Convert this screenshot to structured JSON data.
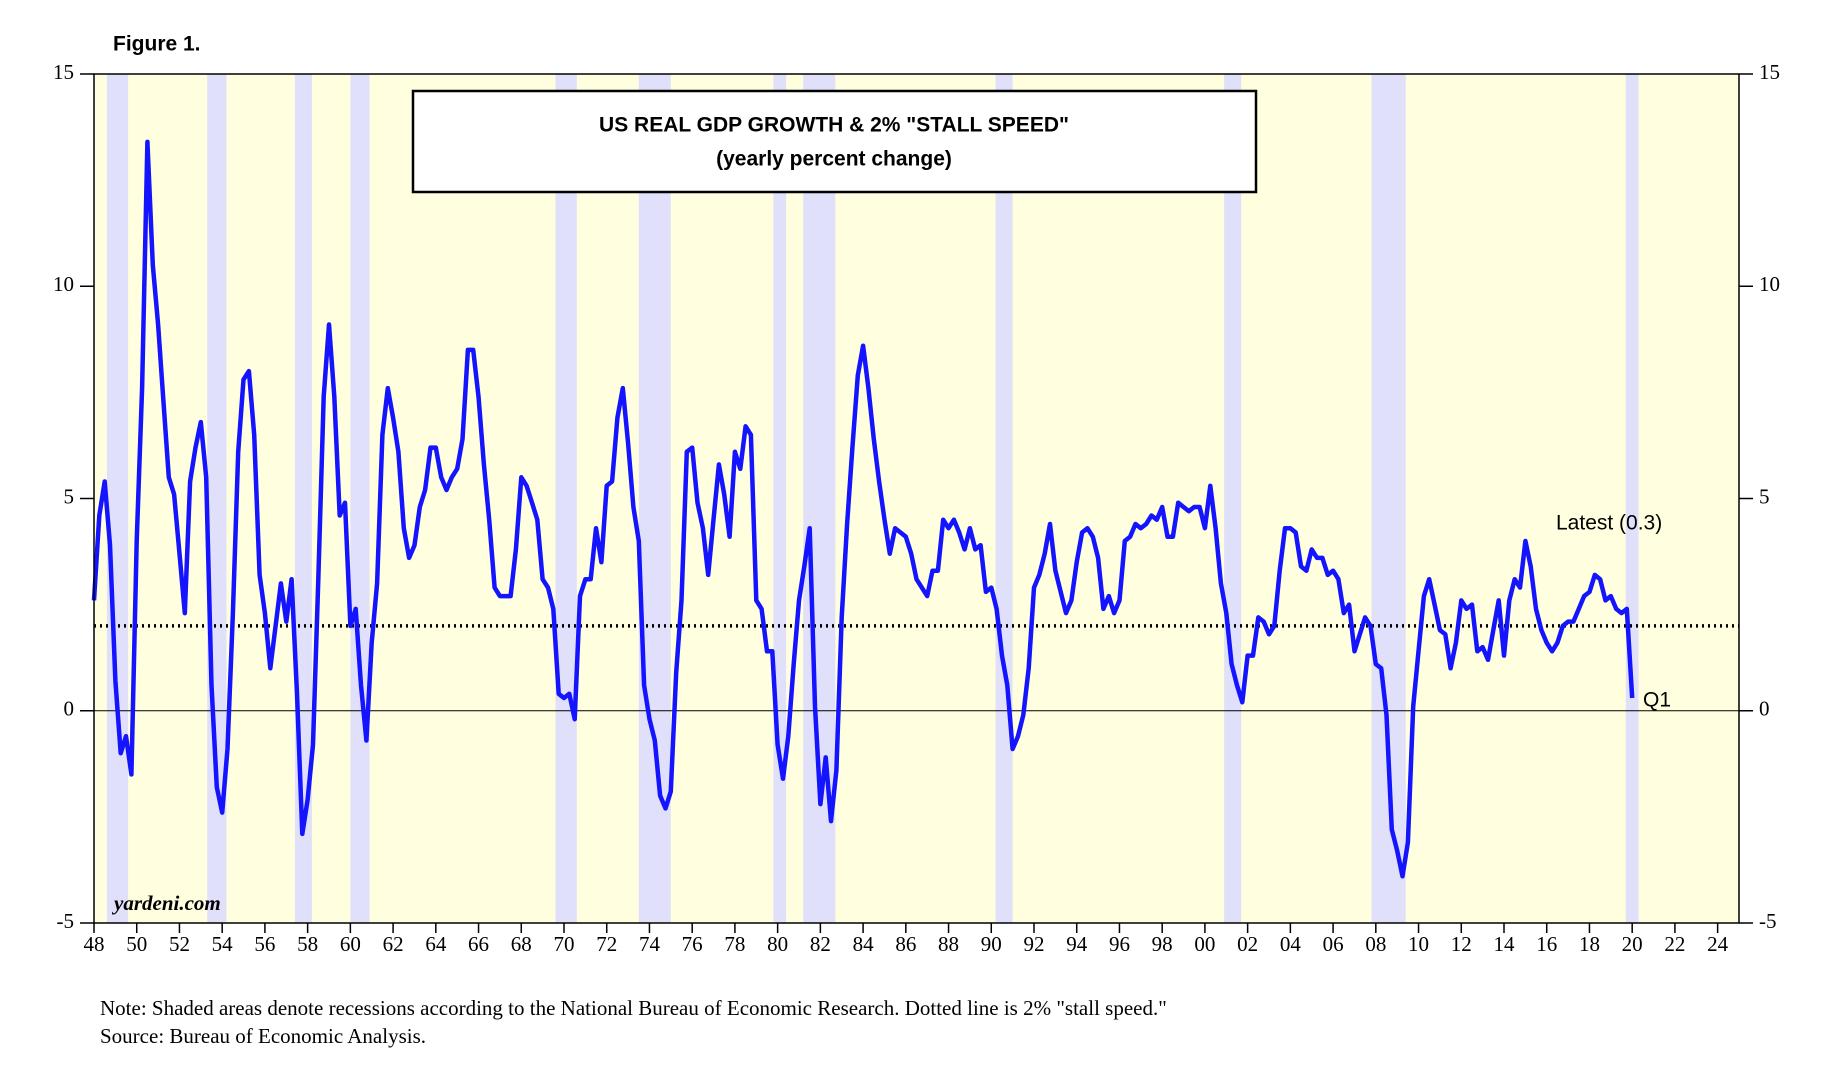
{
  "figure_label": "Figure 1.",
  "chart_data": {
    "type": "line",
    "title": "US REAL GDP GROWTH & 2% \"STALL SPEED\"",
    "subtitle": "(yearly percent change)",
    "color": "#1414ff",
    "x": [
      1948,
      1948.25,
      1948.5,
      1948.75,
      1949,
      1949.25,
      1949.5,
      1949.75,
      1950,
      1950.25,
      1950.5,
      1950.75,
      1951,
      1951.25,
      1951.5,
      1951.75,
      1952,
      1952.25,
      1952.5,
      1952.75,
      1953,
      1953.25,
      1953.5,
      1953.75,
      1954,
      1954.25,
      1954.5,
      1954.75,
      1955,
      1955.25,
      1955.5,
      1955.75,
      1956,
      1956.25,
      1956.5,
      1956.75,
      1957,
      1957.25,
      1957.5,
      1957.75,
      1958,
      1958.25,
      1958.5,
      1958.75,
      1959,
      1959.25,
      1959.5,
      1959.75,
      1960,
      1960.25,
      1960.5,
      1960.75,
      1961,
      1961.25,
      1961.5,
      1961.75,
      1962,
      1962.25,
      1962.5,
      1962.75,
      1963,
      1963.25,
      1963.5,
      1963.75,
      1964,
      1964.25,
      1964.5,
      1964.75,
      1965,
      1965.25,
      1965.5,
      1965.75,
      1966,
      1966.25,
      1966.5,
      1966.75,
      1967,
      1967.25,
      1967.5,
      1967.75,
      1968,
      1968.25,
      1968.5,
      1968.75,
      1969,
      1969.25,
      1969.5,
      1969.75,
      1970,
      1970.25,
      1970.5,
      1970.75,
      1971,
      1971.25,
      1971.5,
      1971.75,
      1972,
      1972.25,
      1972.5,
      1972.75,
      1973,
      1973.25,
      1973.5,
      1973.75,
      1974,
      1974.25,
      1974.5,
      1974.75,
      1975,
      1975.25,
      1975.5,
      1975.75,
      1976,
      1976.25,
      1976.5,
      1976.75,
      1977,
      1977.25,
      1977.5,
      1977.75,
      1978,
      1978.25,
      1978.5,
      1978.75,
      1979,
      1979.25,
      1979.5,
      1979.75,
      1980,
      1980.25,
      1980.5,
      1980.75,
      1981,
      1981.25,
      1981.5,
      1981.75,
      1982,
      1982.25,
      1982.5,
      1982.75,
      1983,
      1983.25,
      1983.5,
      1983.75,
      1984,
      1984.25,
      1984.5,
      1984.75,
      1985,
      1985.25,
      1985.5,
      1985.75,
      1986,
      1986.25,
      1986.5,
      1986.75,
      1987,
      1987.25,
      1987.5,
      1987.75,
      1988,
      1988.25,
      1988.5,
      1988.75,
      1989,
      1989.25,
      1989.5,
      1989.75,
      1990,
      1990.25,
      1990.5,
      1990.75,
      1991,
      1991.25,
      1991.5,
      1991.75,
      1992,
      1992.25,
      1992.5,
      1992.75,
      1993,
      1993.25,
      1993.5,
      1993.75,
      1994,
      1994.25,
      1994.5,
      1994.75,
      1995,
      1995.25,
      1995.5,
      1995.75,
      1996,
      1996.25,
      1996.5,
      1996.75,
      1997,
      1997.25,
      1997.5,
      1997.75,
      1998,
      1998.25,
      1998.5,
      1998.75,
      1999,
      1999.25,
      1999.5,
      1999.75,
      2000,
      2000.25,
      2000.5,
      2000.75,
      2001,
      2001.25,
      2001.5,
      2001.75,
      2002,
      2002.25,
      2002.5,
      2002.75,
      2003,
      2003.25,
      2003.5,
      2003.75,
      2004,
      2004.25,
      2004.5,
      2004.75,
      2005,
      2005.25,
      2005.5,
      2005.75,
      2006,
      2006.25,
      2006.5,
      2006.75,
      2007,
      2007.25,
      2007.5,
      2007.75,
      2008,
      2008.25,
      2008.5,
      2008.75,
      2009,
      2009.25,
      2009.5,
      2009.75,
      2010,
      2010.25,
      2010.5,
      2010.75,
      2011,
      2011.25,
      2011.5,
      2011.75,
      2012,
      2012.25,
      2012.5,
      2012.75,
      2013,
      2013.25,
      2013.5,
      2013.75,
      2014,
      2014.25,
      2014.5,
      2014.75,
      2015,
      2015.25,
      2015.5,
      2015.75,
      2016,
      2016.25,
      2016.5,
      2016.75,
      2017,
      2017.25,
      2017.5,
      2017.75,
      2018,
      2018.25,
      2018.5,
      2018.75,
      2019,
      2019.25,
      2019.5,
      2019.75,
      2020
    ],
    "values": [
      2.6,
      4.6,
      5.4,
      3.9,
      0.7,
      -1.0,
      -0.6,
      -1.5,
      4.0,
      7.6,
      13.4,
      10.5,
      9.1,
      7.3,
      5.5,
      5.1,
      3.7,
      2.3,
      5.4,
      6.2,
      6.8,
      5.5,
      0.6,
      -1.8,
      -2.4,
      -0.9,
      2.3,
      6.1,
      7.8,
      8.0,
      6.5,
      3.2,
      2.3,
      1.0,
      2.0,
      3.0,
      2.1,
      3.1,
      0.4,
      -2.9,
      -2.1,
      -0.8,
      3.1,
      7.4,
      9.1,
      7.4,
      4.6,
      4.9,
      2.0,
      2.4,
      0.6,
      -0.7,
      1.6,
      3.0,
      6.5,
      7.6,
      6.9,
      6.1,
      4.3,
      3.6,
      3.9,
      4.8,
      5.2,
      6.2,
      6.2,
      5.5,
      5.2,
      5.5,
      5.7,
      6.4,
      8.5,
      8.5,
      7.4,
      5.8,
      4.5,
      2.9,
      2.7,
      2.7,
      2.7,
      3.8,
      5.5,
      5.3,
      4.9,
      4.5,
      3.1,
      2.9,
      2.4,
      0.4,
      0.3,
      0.4,
      -0.2,
      2.7,
      3.1,
      3.1,
      4.3,
      3.5,
      5.3,
      5.4,
      6.9,
      7.6,
      6.3,
      4.8,
      4.0,
      0.6,
      -0.2,
      -0.7,
      -2.0,
      -2.3,
      -1.9,
      0.9,
      2.6,
      6.1,
      6.2,
      4.9,
      4.3,
      3.2,
      4.5,
      5.8,
      5.1,
      4.1,
      6.1,
      5.7,
      6.7,
      6.5,
      2.6,
      2.4,
      1.4,
      1.4,
      -0.8,
      -1.6,
      -0.6,
      1.1,
      2.6,
      3.4,
      4.3,
      0.1,
      -2.2,
      -1.1,
      -2.6,
      -1.4,
      2.2,
      4.4,
      6.2,
      7.9,
      8.6,
      7.6,
      6.4,
      5.4,
      4.5,
      3.7,
      4.3,
      4.2,
      4.1,
      3.7,
      3.1,
      2.9,
      2.7,
      3.3,
      3.3,
      4.5,
      4.3,
      4.5,
      4.2,
      3.8,
      4.3,
      3.8,
      3.9,
      2.8,
      2.9,
      2.4,
      1.3,
      0.6,
      -0.9,
      -0.6,
      -0.1,
      1.0,
      2.9,
      3.2,
      3.7,
      4.4,
      3.3,
      2.8,
      2.3,
      2.6,
      3.5,
      4.2,
      4.3,
      4.1,
      3.6,
      2.4,
      2.7,
      2.3,
      2.6,
      4.0,
      4.1,
      4.4,
      4.3,
      4.4,
      4.6,
      4.5,
      4.8,
      4.1,
      4.1,
      4.9,
      4.8,
      4.7,
      4.8,
      4.8,
      4.3,
      5.3,
      4.3,
      3.0,
      2.3,
      1.1,
      0.6,
      0.2,
      1.3,
      1.3,
      2.2,
      2.1,
      1.8,
      2.0,
      3.3,
      4.3,
      4.3,
      4.2,
      3.4,
      3.3,
      3.8,
      3.6,
      3.6,
      3.2,
      3.3,
      3.1,
      2.3,
      2.5,
      1.4,
      1.8,
      2.2,
      2.0,
      1.1,
      1.0,
      -0.1,
      -2.8,
      -3.3,
      -3.9,
      -3.1,
      0.1,
      1.4,
      2.7,
      3.1,
      2.5,
      1.9,
      1.8,
      1.0,
      1.6,
      2.6,
      2.4,
      2.5,
      1.4,
      1.5,
      1.2,
      1.9,
      2.6,
      1.3,
      2.6,
      3.1,
      2.9,
      4.0,
      3.4,
      2.4,
      1.9,
      1.6,
      1.4,
      1.6,
      2.0,
      2.1,
      2.1,
      2.4,
      2.7,
      2.8,
      3.2,
      3.1,
      2.6,
      2.7,
      2.4,
      2.3,
      2.4,
      0.3
    ],
    "xlim": [
      1948,
      2025
    ],
    "xticks": [
      {
        "value": 1948,
        "label": "48"
      },
      {
        "value": 1950,
        "label": "50"
      },
      {
        "value": 1952,
        "label": "52"
      },
      {
        "value": 1954,
        "label": "54"
      },
      {
        "value": 1956,
        "label": "56"
      },
      {
        "value": 1958,
        "label": "58"
      },
      {
        "value": 1960,
        "label": "60"
      },
      {
        "value": 1962,
        "label": "62"
      },
      {
        "value": 1964,
        "label": "64"
      },
      {
        "value": 1966,
        "label": "66"
      },
      {
        "value": 1968,
        "label": "68"
      },
      {
        "value": 1970,
        "label": "70"
      },
      {
        "value": 1972,
        "label": "72"
      },
      {
        "value": 1974,
        "label": "74"
      },
      {
        "value": 1976,
        "label": "76"
      },
      {
        "value": 1978,
        "label": "78"
      },
      {
        "value": 1980,
        "label": "80"
      },
      {
        "value": 1982,
        "label": "82"
      },
      {
        "value": 1984,
        "label": "84"
      },
      {
        "value": 1986,
        "label": "86"
      },
      {
        "value": 1988,
        "label": "88"
      },
      {
        "value": 1990,
        "label": "90"
      },
      {
        "value": 1992,
        "label": "92"
      },
      {
        "value": 1994,
        "label": "94"
      },
      {
        "value": 1996,
        "label": "96"
      },
      {
        "value": 1998,
        "label": "98"
      },
      {
        "value": 2000,
        "label": "00"
      },
      {
        "value": 2002,
        "label": "02"
      },
      {
        "value": 2004,
        "label": "04"
      },
      {
        "value": 2006,
        "label": "06"
      },
      {
        "value": 2008,
        "label": "08"
      },
      {
        "value": 2010,
        "label": "10"
      },
      {
        "value": 2012,
        "label": "12"
      },
      {
        "value": 2014,
        "label": "14"
      },
      {
        "value": 2016,
        "label": "16"
      },
      {
        "value": 2018,
        "label": "18"
      },
      {
        "value": 2020,
        "label": "20"
      },
      {
        "value": 2022,
        "label": "22"
      },
      {
        "value": 2024,
        "label": "24"
      }
    ],
    "ylim": [
      -5,
      15
    ],
    "yticks": [
      -5,
      0,
      5,
      10,
      15
    ],
    "reference_line": 2,
    "recessions": [
      [
        1948.6,
        1949.6
      ],
      [
        1953.3,
        1954.2
      ],
      [
        1957.4,
        1958.2
      ],
      [
        1960.0,
        1960.9
      ],
      [
        1969.6,
        1970.6
      ],
      [
        1973.5,
        1975.0
      ],
      [
        1979.8,
        1980.4
      ],
      [
        1981.2,
        1982.7
      ],
      [
        1990.2,
        1991.0
      ],
      [
        2000.9,
        2001.7
      ],
      [
        2007.8,
        2009.4
      ],
      [
        2019.7,
        2020.3
      ]
    ],
    "annotations": {
      "latest": "Latest (0.3)",
      "last_period": "Q1",
      "site": "yardeni.com"
    }
  },
  "notes": [
    "Note: Shaded areas denote recessions according to the National Bureau of Economic Research. Dotted line is 2% \"stall speed.\"",
    "Source: Bureau of Economic Analysis."
  ]
}
